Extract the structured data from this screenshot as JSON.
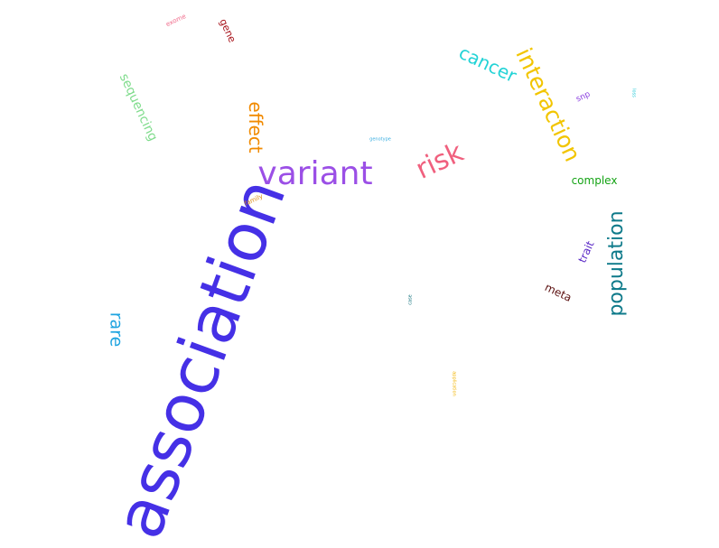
{
  "words": [
    {
      "id": "association",
      "text": "association",
      "color": "#4530e6"
    },
    {
      "id": "variant",
      "text": "variant",
      "color": "#9b4fe6"
    },
    {
      "id": "risk",
      "text": "risk",
      "color": "#f0607e"
    },
    {
      "id": "interaction",
      "text": "interaction",
      "color": "#f2c500"
    },
    {
      "id": "population",
      "text": "population",
      "color": "#0e7a8a"
    },
    {
      "id": "cancer",
      "text": "cancer",
      "color": "#22d3d6"
    },
    {
      "id": "effect",
      "text": "effect",
      "color": "#f18a00"
    },
    {
      "id": "rare",
      "text": "rare",
      "color": "#1fa4e0"
    },
    {
      "id": "sequencing",
      "text": "sequencing",
      "color": "#7fdc8c"
    },
    {
      "id": "complex",
      "text": "complex",
      "color": "#14a314"
    },
    {
      "id": "meta",
      "text": "meta",
      "color": "#5a0e0e"
    },
    {
      "id": "trait",
      "text": "trait",
      "color": "#5a28c6"
    },
    {
      "id": "gene",
      "text": "gene",
      "color": "#a8141c"
    },
    {
      "id": "snp",
      "text": "snp",
      "color": "#8b3fe0"
    },
    {
      "id": "family",
      "text": "family",
      "color": "#d98a12"
    },
    {
      "id": "exome",
      "text": "exome",
      "color": "#f06a8a"
    },
    {
      "id": "genotype",
      "text": "genotype",
      "color": "#3aaee0"
    },
    {
      "id": "case",
      "text": "case",
      "color": "#0e6f7a"
    },
    {
      "id": "application",
      "text": "application",
      "color": "#f2b400"
    },
    {
      "id": "loss",
      "text": "loss",
      "color": "#22c9d8"
    }
  ]
}
